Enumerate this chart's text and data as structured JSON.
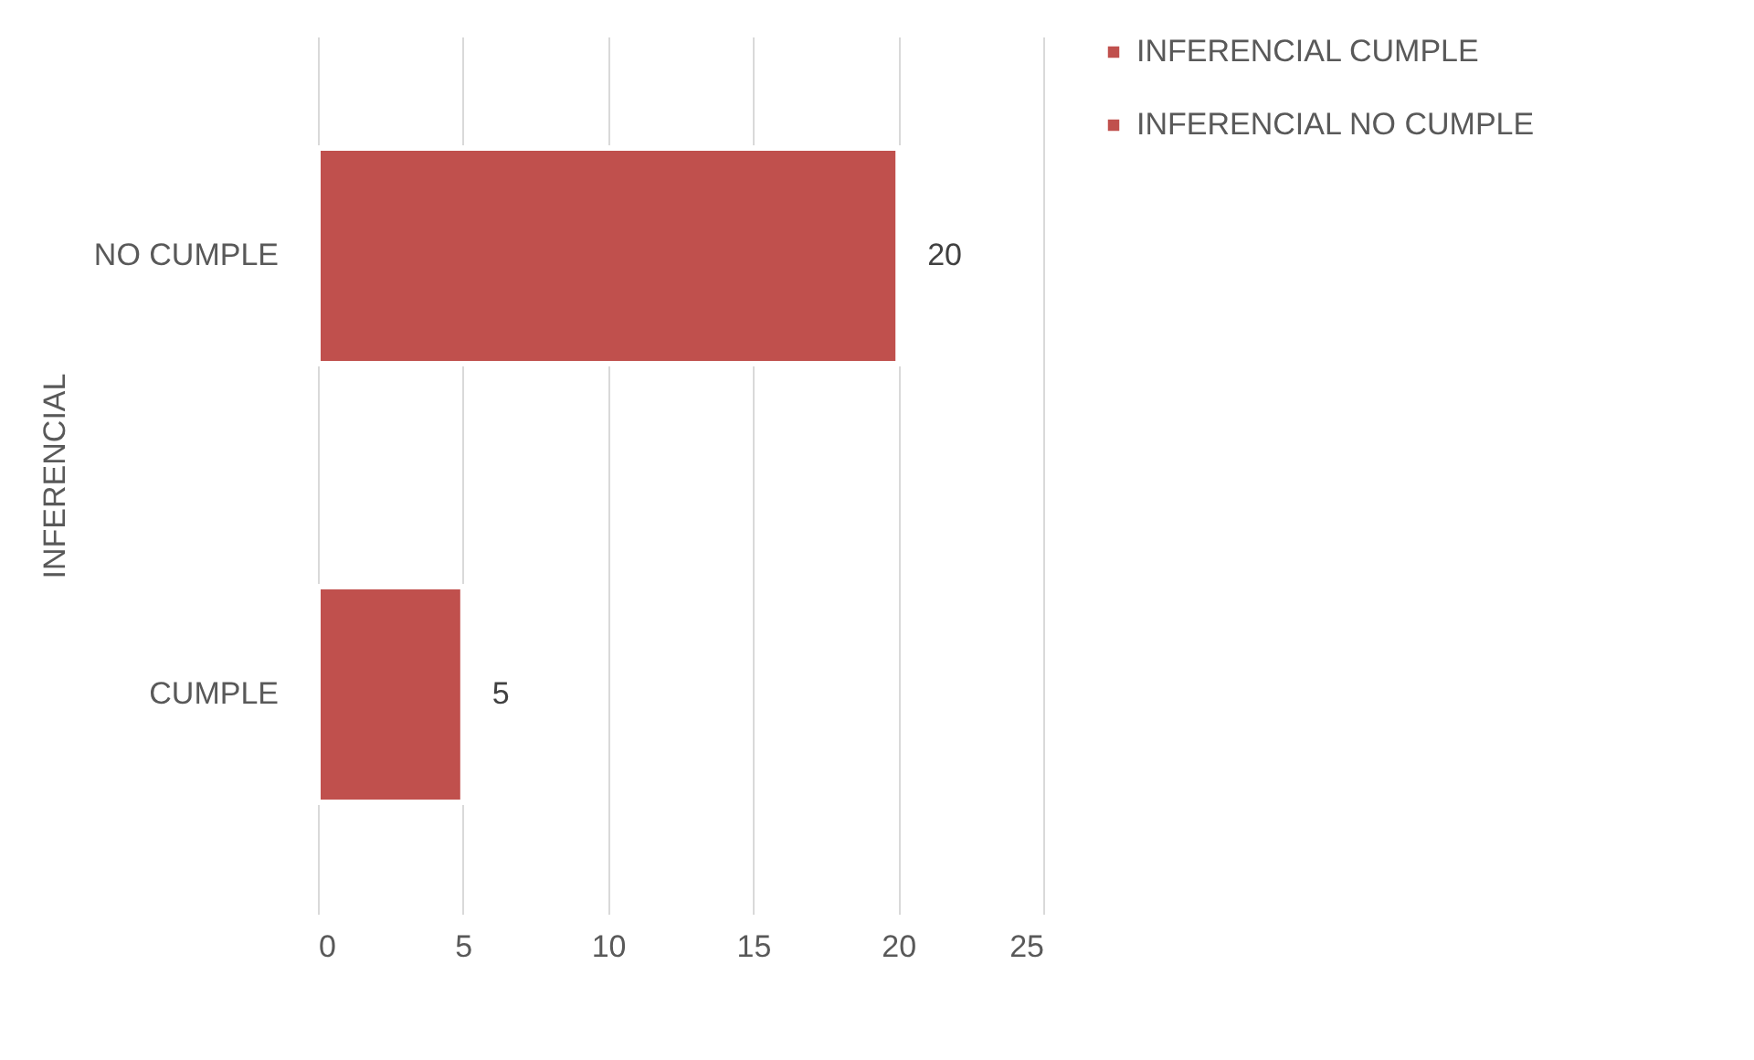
{
  "chart_data": {
    "type": "bar",
    "orientation": "horizontal",
    "ylabel": "INFERENCIAL",
    "categories": [
      "NO CUMPLE",
      "CUMPLE"
    ],
    "series": [
      {
        "name": "INFERENCIAL CUMPLE",
        "color": "#c0504d",
        "values": [
          null,
          5
        ]
      },
      {
        "name": "INFERENCIAL NO CUMPLE",
        "color": "#c0504d",
        "values": [
          20,
          null
        ]
      }
    ],
    "xlim": [
      0,
      25
    ],
    "xticks": [
      0,
      5,
      10,
      15,
      20,
      25
    ],
    "grid": "x",
    "data_labels": true,
    "legend": "right"
  }
}
